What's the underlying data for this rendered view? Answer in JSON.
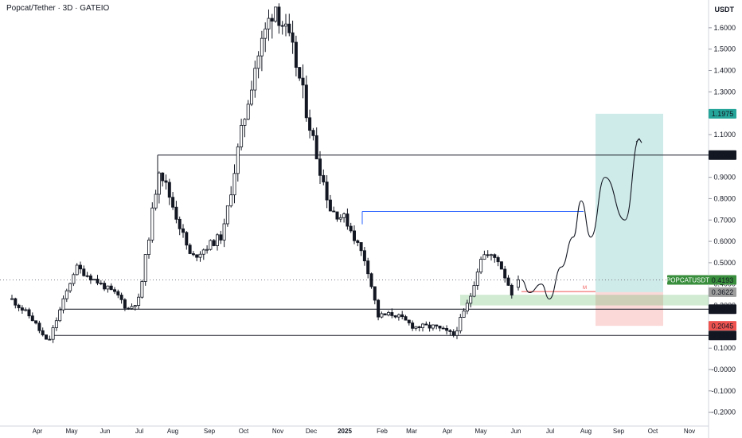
{
  "chart_data": {
    "type": "candlestick",
    "title": "Popcat/Tether · 3D · GATEIO",
    "unit": "USDT",
    "ylim": [
      -0.25,
      1.75
    ],
    "y_ticks": [
      "1.6000",
      "1.5000",
      "1.4000",
      "1.3000",
      "1.2000",
      "1.1000",
      "1.0000",
      "0.9000",
      "0.8000",
      "0.7000",
      "0.6000",
      "0.5000",
      "0.4000",
      "0.3000",
      "0.2000",
      "0.1000",
      "-0.0000",
      "-0.1000",
      "-0.2000"
    ],
    "x_ticks": [
      "Apr",
      "May",
      "Jun",
      "Jul",
      "Aug",
      "Sep",
      "Oct",
      "Nov",
      "Dec",
      "2025",
      "Feb",
      "Mar",
      "Apr",
      "May",
      "Jun",
      "Jul",
      "Aug",
      "Sep",
      "Oct",
      "Nov"
    ],
    "price_labels": [
      {
        "text": "1.1975",
        "value": 1.1975,
        "color": "#26a69a"
      },
      {
        "text": "1.0040",
        "value": 1.004,
        "color": "#131722"
      },
      {
        "text": "0.4193",
        "value": 0.4193,
        "color": "#388e3c",
        "name": "POPCATUSDT"
      },
      {
        "text": "0.3622",
        "value": 0.3622,
        "color": "#9e9e9e"
      },
      {
        "text": "0.2826",
        "value": 0.2826,
        "color": "#131722"
      },
      {
        "text": "0.2045",
        "value": 0.2045,
        "color": "#ef5350"
      },
      {
        "text": "0.1595",
        "value": 0.1595,
        "color": "#131722"
      }
    ],
    "horizontal_lines": [
      1.004,
      0.2826,
      0.1595
    ],
    "resistance_line": 0.74,
    "target_price": 1.1975,
    "entry_price": 0.3622,
    "stop_price": 0.2045,
    "current_price": 0.4193,
    "demand_zone": [
      0.3,
      0.35
    ],
    "entry_marker": "M",
    "projected_path": [
      0.42,
      0.36,
      0.4,
      0.33,
      0.48,
      0.62,
      0.79,
      0.62,
      0.9,
      0.7,
      1.08
    ]
  }
}
